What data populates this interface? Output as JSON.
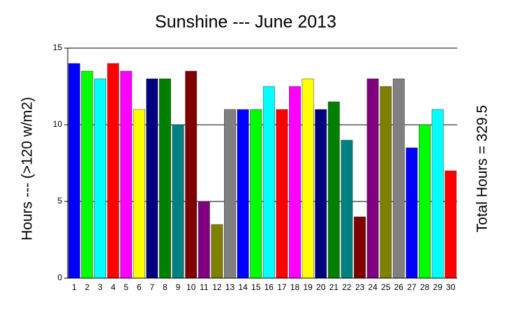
{
  "chart_data": {
    "type": "bar",
    "title": "Sunshine --- June 2013",
    "y_label": "Hours --- (>120 w/m2)",
    "annotation": "Total Hours = 329.5",
    "categories": [
      "1",
      "2",
      "3",
      "4",
      "5",
      "6",
      "7",
      "8",
      "9",
      "10",
      "11",
      "12",
      "13",
      "14",
      "15",
      "16",
      "17",
      "18",
      "19",
      "20",
      "21",
      "22",
      "23",
      "24",
      "25",
      "26",
      "27",
      "28",
      "29",
      "30"
    ],
    "values": [
      14,
      13.5,
      13,
      14,
      13.5,
      11,
      13,
      13,
      10,
      13.5,
      5,
      3.5,
      11,
      11,
      11,
      12.5,
      11,
      12.5,
      13,
      11,
      11.5,
      9,
      4,
      13,
      12.5,
      13,
      8.5,
      10,
      11,
      7
    ],
    "colors": [
      "#0000ff",
      "#00ff00",
      "#00ffff",
      "#ff0000",
      "#ff00ff",
      "#ffff00",
      "#000080",
      "#008000",
      "#008080",
      "#800000",
      "#800080",
      "#808000",
      "#808080",
      "#0000ff",
      "#00ff00",
      "#00ffff",
      "#ff0000",
      "#ff00ff",
      "#ffff00",
      "#000080",
      "#008000",
      "#008080",
      "#800000",
      "#800080",
      "#808000",
      "#808080",
      "#0000ff",
      "#00ff00",
      "#00ffff",
      "#ff0000"
    ],
    "ylim": [
      0,
      15
    ],
    "yticks": [
      0,
      5,
      10,
      15
    ],
    "grid": true
  }
}
